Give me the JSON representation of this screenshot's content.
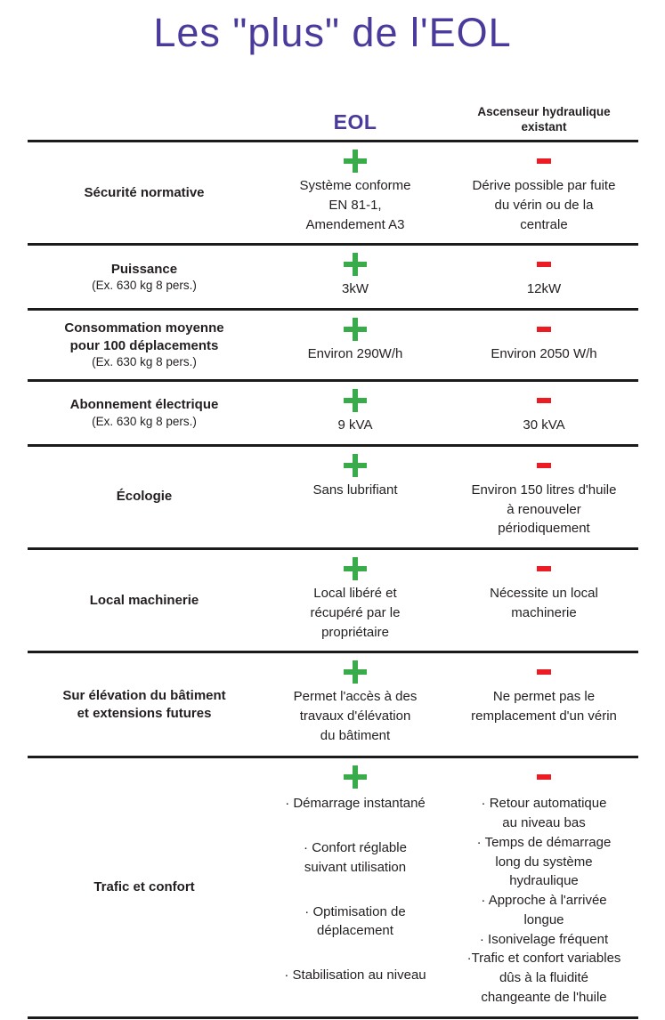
{
  "title": "Les \"plus\" de l'EOL",
  "colors": {
    "accent_purple": "#4a3a9c",
    "positive_green": "#3aab4a",
    "negative_red": "#ec1c24",
    "text": "#231f20"
  },
  "columns": {
    "eol": "EOL",
    "hydraulic": "Ascenseur hydraulique\nexistant"
  },
  "rows": [
    {
      "label": "Sécurité normative",
      "sublabel": "",
      "eol": {
        "verdict": "plus",
        "text": "Système conforme\nEN 81-1,\nAmendement A3"
      },
      "hydraulic": {
        "verdict": "minus",
        "text": "Dérive possible par fuite\ndu vérin ou de la\ncentrale"
      }
    },
    {
      "label": "Puissance",
      "sublabel": "(Ex. 630 kg 8 pers.)",
      "eol": {
        "verdict": "plus",
        "text": "3kW"
      },
      "hydraulic": {
        "verdict": "minus",
        "text": "12kW"
      }
    },
    {
      "label": "Consommation moyenne\npour 100 déplacements",
      "sublabel": "(Ex. 630 kg 8 pers.)",
      "eol": {
        "verdict": "plus",
        "text": "Environ 290W/h"
      },
      "hydraulic": {
        "verdict": "minus",
        "text": "Environ 2050 W/h"
      }
    },
    {
      "label": "Abonnement électrique",
      "sublabel": "(Ex. 630 kg 8 pers.)",
      "eol": {
        "verdict": "plus",
        "text": "9 kVA"
      },
      "hydraulic": {
        "verdict": "minus",
        "text": "30 kVA"
      }
    },
    {
      "label": "Écologie",
      "sublabel": "",
      "eol": {
        "verdict": "plus",
        "text": "Sans lubrifiant"
      },
      "hydraulic": {
        "verdict": "minus",
        "text": "Environ 150 litres d'huile\nà renouveler\npériodiquement"
      }
    },
    {
      "label": "Local machinerie",
      "sublabel": "",
      "eol": {
        "verdict": "plus",
        "text": "Local libéré et\nrécupéré par le\npropriétaire"
      },
      "hydraulic": {
        "verdict": "minus",
        "text": "Nécessite un local\nmachinerie"
      }
    },
    {
      "label": "Sur élévation du bâtiment\net extensions futures",
      "sublabel": "",
      "eol": {
        "verdict": "plus",
        "text": "Permet l'accès à des\ntravaux d'élévation\ndu bâtiment"
      },
      "hydraulic": {
        "verdict": "minus",
        "text": "Ne permet pas le\nremplacement d'un vérin"
      }
    },
    {
      "label": "Trafic et confort",
      "sublabel": "",
      "eol": {
        "verdict": "plus",
        "items": [
          "· Démarrage instantané",
          "· Confort réglable\nsuivant utilisation",
          "· Optimisation de\ndéplacement",
          "· Stabilisation au niveau"
        ]
      },
      "hydraulic": {
        "verdict": "minus",
        "items": [
          "· Retour automatique\nau niveau bas",
          "· Temps de démarrage\nlong du système\nhydraulique",
          "· Approche à l'arrivée\nlongue",
          "· Isonivelage fréquent",
          "·Trafic et confort variables\ndûs à la fluidité\nchangeante de l'huile"
        ]
      }
    }
  ]
}
